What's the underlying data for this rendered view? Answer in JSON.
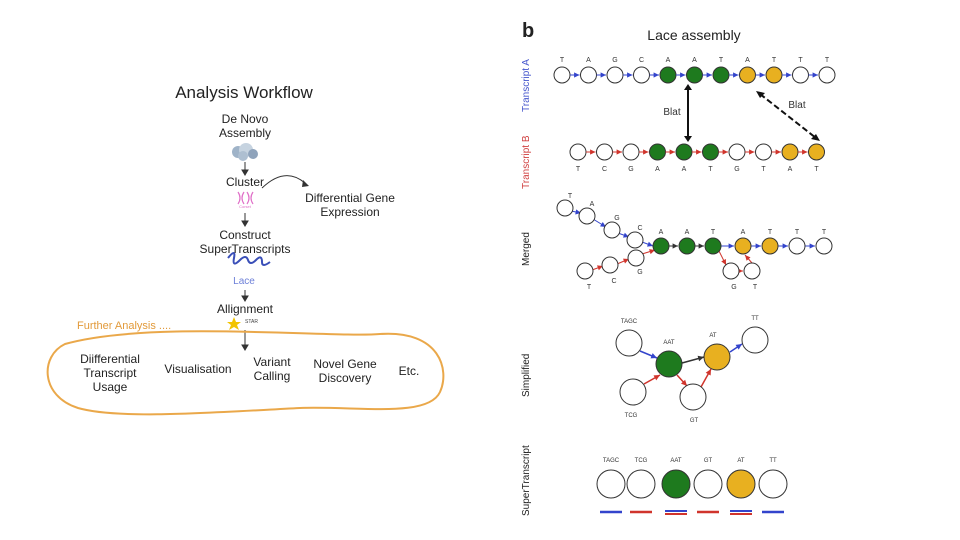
{
  "workflow": {
    "title": "Analysis Workflow",
    "steps": {
      "denovo": "De Novo\nAssembly",
      "cluster": "Cluster",
      "dge": "Differential Gene\nExpression",
      "construct": "Construct\nSuperTranscripts",
      "lace_logo": "Lace",
      "alignment": "Allignment",
      "star_logo": "STAR"
    },
    "further_label": "Further Analysis ....",
    "analyses": [
      "Diifferential\nTranscript\nUsage",
      "Visualisation",
      "Variant\nCalling",
      "Novel Gene\nDiscovery",
      "Etc."
    ]
  },
  "lace": {
    "panel_letter": "b",
    "title": "Lace assembly",
    "row_labels": {
      "transcript_a": "Transcript A",
      "transcript_b": "Transcript B",
      "merged": "Merged",
      "simplified": "Simplified",
      "supertranscript": "SuperTranscript"
    },
    "blat_label": "Blat",
    "transcript_a_letters": [
      "T",
      "A",
      "G",
      "C",
      "A",
      "A",
      "T",
      "A",
      "T",
      "T",
      "T"
    ],
    "transcript_a_colors": [
      "white",
      "white",
      "white",
      "white",
      "green",
      "green",
      "green",
      "gold",
      "gold",
      "white",
      "white"
    ],
    "transcript_b_letters": [
      "T",
      "C",
      "G",
      "A",
      "A",
      "T",
      "G",
      "T",
      "A",
      "T"
    ],
    "transcript_b_colors": [
      "white",
      "white",
      "white",
      "green",
      "green",
      "green",
      "white",
      "white",
      "gold",
      "gold"
    ],
    "merged_top_letters": [
      "T",
      "A",
      "G",
      "C"
    ],
    "merged_core_letters": [
      "A",
      "A",
      "T"
    ],
    "merged_right_letters": [
      "A",
      "T",
      "T",
      "T"
    ],
    "merged_bottom_letters": [
      "T",
      "C",
      "G"
    ],
    "merged_gt_letters": [
      "G",
      "T"
    ],
    "simplified_nodes": [
      "TAGC",
      "AAT",
      "AT",
      "TT",
      "TCG",
      "GT"
    ],
    "supertranscript_nodes": [
      "TAGC",
      "TCG",
      "AAT",
      "GT",
      "AT",
      "TT"
    ],
    "colors": {
      "green": "#1e7a1e",
      "gold": "#e8b020",
      "blue_arrow": "#3344cc",
      "red_arrow": "#d0342c",
      "workflow_outline": "#eaa84a",
      "transcript_a_label": "#4455cc",
      "transcript_b_label": "#d04040"
    }
  }
}
